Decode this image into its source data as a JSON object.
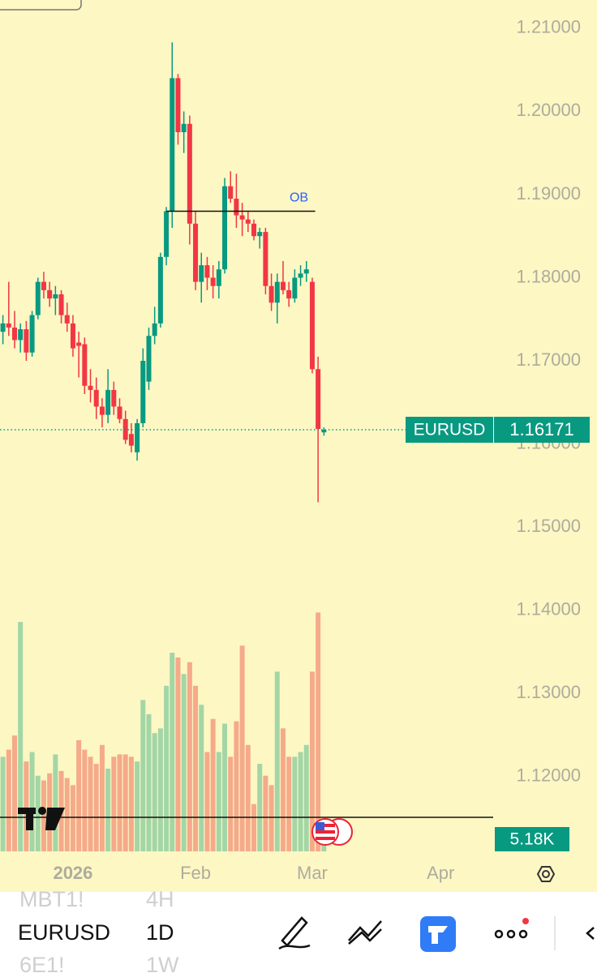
{
  "chart_data": {
    "type": "candlestick",
    "symbol": "EURUSD",
    "x": [
      0,
      1,
      2,
      3,
      4,
      5,
      6,
      7,
      8,
      9,
      10,
      11,
      12,
      13,
      14,
      15,
      16,
      17,
      18,
      19,
      20,
      21,
      22,
      23,
      24,
      25,
      26,
      27,
      28,
      29,
      30,
      31,
      32,
      33,
      34,
      35,
      36,
      37,
      38,
      39,
      40,
      41,
      42,
      43,
      44,
      45,
      46,
      47,
      48,
      49,
      50,
      51,
      52,
      53,
      54,
      55
    ],
    "open": [
      1.1735,
      1.1745,
      1.174,
      1.1725,
      1.1738,
      1.171,
      1.1755,
      1.1795,
      1.1785,
      1.1775,
      1.178,
      1.1755,
      1.1745,
      1.1722,
      1.172,
      1.167,
      1.1665,
      1.1645,
      1.1635,
      1.1665,
      1.1645,
      1.163,
      1.1612,
      1.159,
      1.1625,
      1.1675,
      1.173,
      1.1745,
      1.1825,
      1.188,
      1.204,
      1.1975,
      1.1985,
      1.1865,
      1.1795,
      1.1815,
      1.18,
      1.179,
      1.181,
      1.191,
      1.1895,
      1.1875,
      1.187,
      1.1865,
      1.185,
      1.1855,
      1.179,
      1.177,
      1.1795,
      1.1785,
      1.1775,
      1.18,
      1.1805,
      1.1795,
      1.169,
      1.1614
    ],
    "high": [
      1.1755,
      1.1795,
      1.176,
      1.1745,
      1.1748,
      1.176,
      1.18,
      1.1807,
      1.1795,
      1.179,
      1.1785,
      1.177,
      1.1755,
      1.1735,
      1.1728,
      1.169,
      1.168,
      1.1655,
      1.169,
      1.1675,
      1.1655,
      1.164,
      1.1625,
      1.163,
      1.1715,
      1.174,
      1.1765,
      1.183,
      1.1885,
      1.2083,
      1.2045,
      1.2,
      1.1995,
      1.188,
      1.183,
      1.1825,
      1.1815,
      1.182,
      1.192,
      1.1928,
      1.1925,
      1.189,
      1.188,
      1.187,
      1.186,
      1.186,
      1.1805,
      1.1805,
      1.182,
      1.1795,
      1.181,
      1.1815,
      1.182,
      1.18,
      1.1705,
      1.162
    ],
    "low": [
      1.172,
      1.173,
      1.1715,
      1.171,
      1.17,
      1.1705,
      1.175,
      1.1775,
      1.1765,
      1.1755,
      1.1745,
      1.1735,
      1.1705,
      1.168,
      1.166,
      1.165,
      1.163,
      1.162,
      1.1625,
      1.1635,
      1.1625,
      1.16,
      1.159,
      1.158,
      1.162,
      1.1665,
      1.172,
      1.174,
      1.1815,
      1.186,
      1.196,
      1.195,
      1.184,
      1.1785,
      1.177,
      1.1785,
      1.1775,
      1.1775,
      1.1805,
      1.189,
      1.186,
      1.185,
      1.1855,
      1.1845,
      1.1835,
      1.178,
      1.176,
      1.1745,
      1.178,
      1.1765,
      1.177,
      1.179,
      1.1795,
      1.1685,
      1.153,
      1.161
    ],
    "close": [
      1.1745,
      1.174,
      1.1725,
      1.1738,
      1.171,
      1.1755,
      1.1795,
      1.1785,
      1.1775,
      1.178,
      1.1755,
      1.1745,
      1.1715,
      1.1718,
      1.167,
      1.1665,
      1.1645,
      1.1635,
      1.1665,
      1.1645,
      1.163,
      1.1605,
      1.1598,
      1.1625,
      1.17,
      1.173,
      1.1745,
      1.1825,
      1.188,
      1.204,
      1.1975,
      1.1985,
      1.1865,
      1.1795,
      1.1815,
      1.18,
      1.179,
      1.181,
      1.191,
      1.1895,
      1.1875,
      1.187,
      1.1865,
      1.185,
      1.1855,
      1.179,
      1.177,
      1.1795,
      1.1785,
      1.1775,
      1.18,
      1.1805,
      1.181,
      1.169,
      1.1618,
      1.16171
    ],
    "colors": {
      "up": "#089981",
      "down": "#f23645"
    },
    "xlim": [
      -0.5,
      84
    ],
    "xticks": [
      {
        "value": 12,
        "label": "2026"
      },
      {
        "value": 33,
        "label": "Feb"
      },
      {
        "value": 53,
        "label": "Mar"
      },
      {
        "value": 75,
        "label": "Apr"
      }
    ],
    "ylim": [
      1.111,
      1.2134
    ],
    "yticks": [
      {
        "value": 1.21,
        "label": "1.21000"
      },
      {
        "value": 1.2,
        "label": "1.20000"
      },
      {
        "value": 1.19,
        "label": "1.19000"
      },
      {
        "value": 1.18,
        "label": "1.18000"
      },
      {
        "value": 1.17,
        "label": "1.17000"
      },
      {
        "value": 1.16,
        "label": "1.16000"
      },
      {
        "value": 1.15,
        "label": "1.15000"
      },
      {
        "value": 1.14,
        "label": "1.14000"
      },
      {
        "value": 1.13,
        "label": "1.13000"
      },
      {
        "value": 1.12,
        "label": "1.12000"
      }
    ],
    "volume": {
      "values": [
        40,
        43,
        49,
        97,
        38,
        42,
        32,
        30,
        33,
        41,
        34,
        31,
        28,
        47,
        43,
        40,
        37,
        45,
        35,
        40,
        41,
        41,
        40,
        38,
        64,
        58,
        50,
        52,
        70,
        84,
        82,
        75,
        80,
        70,
        62,
        42,
        56,
        42,
        54,
        40,
        55,
        87,
        45,
        20,
        37,
        32,
        28,
        76,
        52,
        40,
        40,
        42,
        45,
        76,
        101,
        5.18
      ],
      "ylim": [
        0,
        120
      ],
      "last_label": "5.18K",
      "colors": {
        "up": "#a3d6a6",
        "down": "#f5aa8a"
      }
    },
    "annotation": {
      "text": "OB",
      "value": 1.188,
      "x": [
        28,
        53.5
      ]
    }
  },
  "toolbar": {
    "symbols": [
      "MBT1!",
      "EURUSD",
      "6E1!"
    ],
    "intervals": [
      "4H",
      "1D",
      "1W"
    ]
  }
}
